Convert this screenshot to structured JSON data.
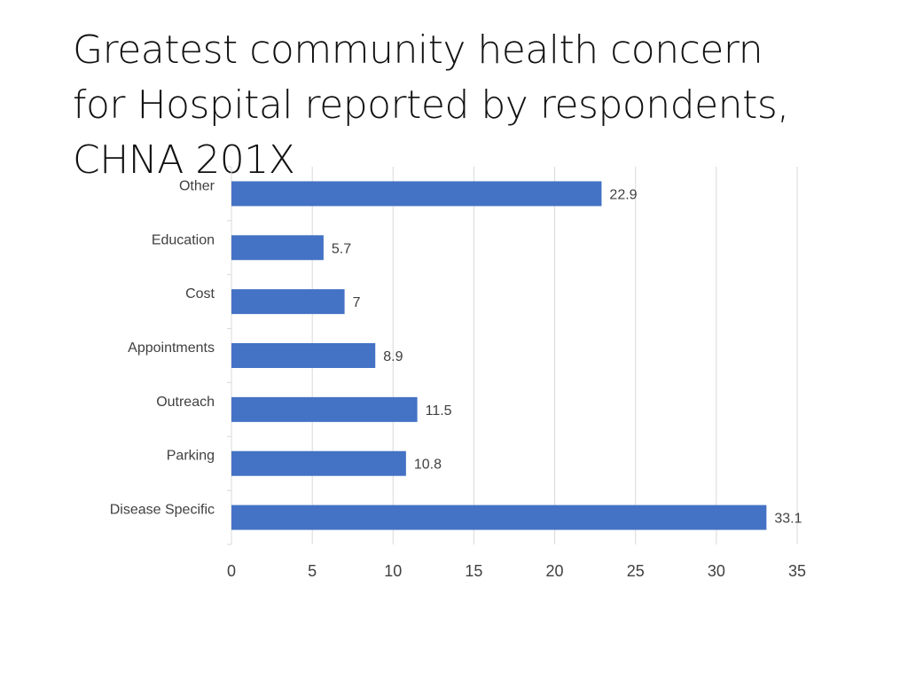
{
  "slide": {
    "title_lines": [
      "Greatest community health concern",
      "for Hospital reported by respondents,",
      "CHNA 201X"
    ]
  },
  "colors": {
    "bar": "#4472c4",
    "grid": "#d9d9d9",
    "text": "#404040"
  },
  "chart_data": {
    "type": "bar",
    "orientation": "horizontal",
    "categories": [
      "Other",
      "Education",
      "Cost",
      "Appointments",
      "Outreach",
      "Parking",
      "Disease Specific"
    ],
    "values": [
      22.9,
      5.7,
      7,
      8.9,
      11.5,
      10.8,
      33.1
    ],
    "value_labels": [
      "22.9",
      "5.7",
      "7",
      "8.9",
      "11.5",
      "10.8",
      "33.1"
    ],
    "xlim": [
      0,
      35
    ],
    "xticks": [
      0,
      5,
      10,
      15,
      20,
      25,
      30,
      35
    ],
    "grid": true,
    "legend": "none"
  }
}
